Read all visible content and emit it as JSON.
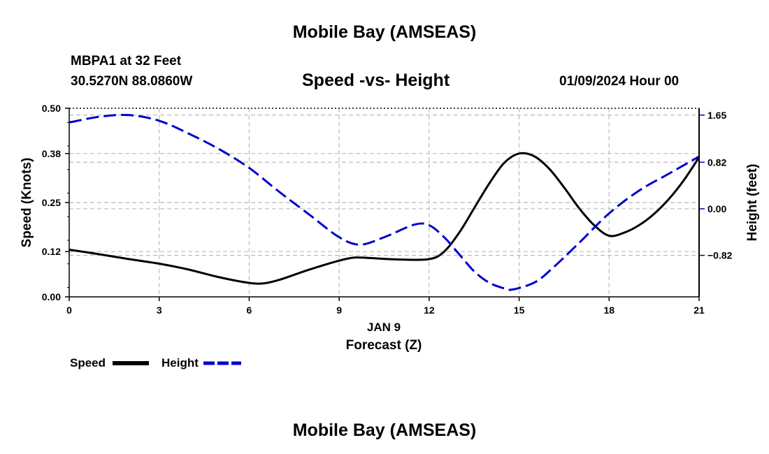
{
  "header": {
    "title": "Mobile Bay (AMSEAS)",
    "station": "MBPA1 at 32 Feet",
    "coords": "30.5270N  88.0860W",
    "date": "01/09/2024 Hour 00"
  },
  "footer": {
    "title": "Mobile Bay (AMSEAS)"
  },
  "legend": {
    "speed_label": "Speed",
    "height_label": "Height"
  },
  "colors": {
    "speed": "#000000",
    "height": "#0000cc",
    "grid": "#bbbbbb"
  },
  "chart_data": {
    "type": "line",
    "title": "Speed -vs- Height",
    "xlabel": "Forecast (Z)",
    "xsublabel": "JAN 9",
    "ylabel": "Speed (Knots)",
    "y2label": "Height (feet)",
    "xlim": [
      0,
      21
    ],
    "ylim": [
      0,
      0.5
    ],
    "y2lim": [
      -1.55,
      1.77
    ],
    "xticks": [
      "0",
      "3",
      "6",
      "9",
      "12",
      "15",
      "18",
      "21"
    ],
    "yticks": [
      "0.00",
      "0.12",
      "0.25",
      "0.38",
      "0.50"
    ],
    "y2ticks": [
      "-0.82",
      "0.00",
      "0.82",
      "1.65"
    ],
    "grid": true,
    "series": [
      {
        "name": "Speed",
        "axis": "left",
        "x": [
          0,
          1,
          2,
          3,
          4,
          5,
          6,
          6.5,
          7,
          8,
          9,
          9.5,
          10,
          11,
          12,
          12.5,
          13,
          13.5,
          14,
          14.5,
          15,
          15.5,
          16,
          16.5,
          17,
          17.5,
          18,
          18.5,
          19,
          19.5,
          20,
          20.5,
          21
        ],
        "values": [
          0.125,
          0.113,
          0.1,
          0.088,
          0.072,
          0.052,
          0.037,
          0.036,
          0.045,
          0.072,
          0.096,
          0.104,
          0.103,
          0.099,
          0.1,
          0.12,
          0.17,
          0.235,
          0.3,
          0.355,
          0.38,
          0.373,
          0.34,
          0.29,
          0.235,
          0.19,
          0.162,
          0.17,
          0.19,
          0.22,
          0.26,
          0.31,
          0.37
        ]
      },
      {
        "name": "Height",
        "axis": "right",
        "x": [
          0,
          1,
          2,
          3,
          4,
          5,
          6,
          7,
          8,
          9,
          9.7,
          10.5,
          11.5,
          12,
          12.5,
          13,
          13.5,
          14,
          14.5,
          14.8,
          15.5,
          16,
          17,
          18,
          19,
          20,
          21
        ],
        "values": [
          1.52,
          1.62,
          1.65,
          1.55,
          1.32,
          1.05,
          0.72,
          0.3,
          -0.1,
          -0.5,
          -0.63,
          -0.5,
          -0.28,
          -0.29,
          -0.5,
          -0.8,
          -1.1,
          -1.3,
          -1.4,
          -1.42,
          -1.3,
          -1.1,
          -0.6,
          -0.08,
          0.32,
          0.62,
          0.92
        ]
      }
    ]
  }
}
